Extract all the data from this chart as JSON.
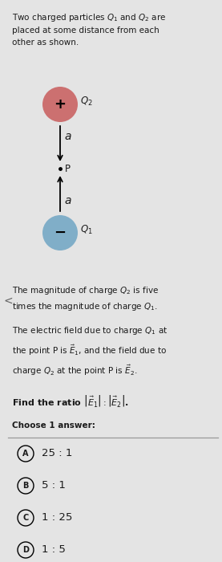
{
  "title_text": "Two charged particles $Q_1$ and $Q_2$ are\nplaced at some distance from each\nother as shown.",
  "bg_color": "#e4e4e4",
  "q2_color": "#cc7070",
  "q1_color": "#80aec8",
  "q2_label": "$Q_2$",
  "q1_label": "$Q_1$",
  "q2_sign": "+",
  "q1_sign": "−",
  "point_label": "P",
  "distance_label": "a",
  "paragraph1": "The magnitude of charge $Q_2$ is five\ntimes the magnitude of charge $Q_1$.",
  "paragraph2": "The electric field due to charge $Q_1$ at\nthe point P is $\\vec{E}_1$, and the field due to\ncharge $Q_2$ at the point P is $\\vec{E}_2$.",
  "find_ratio_label": "Find the ratio ",
  "find_ratio_math": "$\\left|\\vec{E}_1\\right| : \\left|\\vec{E}_2\\right|$.",
  "choose_text": "Choose 1 answer:",
  "options": [
    {
      "label": "A",
      "text": "25 : 1"
    },
    {
      "label": "B",
      "text": "5 : 1"
    },
    {
      "label": "C",
      "text": "1 : 25"
    },
    {
      "label": "D",
      "text": "1 : 5"
    }
  ],
  "left_arrow": "<",
  "divider_color": "#999999",
  "text_color": "#1a1a1a",
  "fig_width": 2.77,
  "fig_height": 7.0,
  "dpi": 100
}
